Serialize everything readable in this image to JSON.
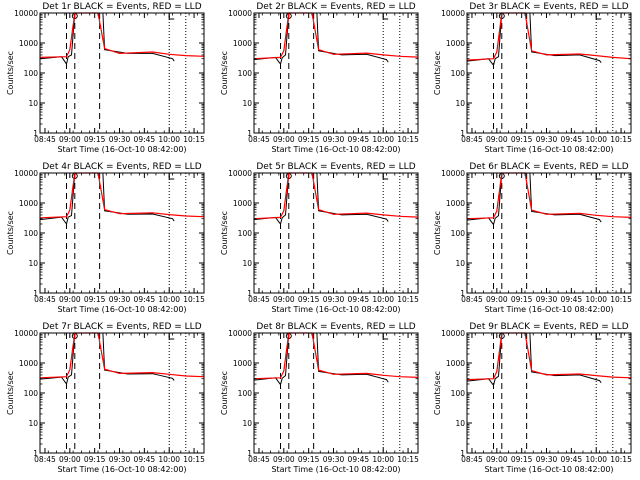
{
  "chart_data": [
    {
      "type": "line",
      "title": "Det 1r BLACK = Events, RED = LLD",
      "xlabel": "Start Time (16-Oct-10 08:42:00)",
      "ylabel": "Counts/sec",
      "y_scale": "log",
      "ylim": [
        1,
        10000
      ],
      "xlim": [
        "08:42",
        "10:21"
      ],
      "x_ticks": [
        "08:45",
        "09:00",
        "09:15",
        "09:30",
        "09:45",
        "10:00",
        "10:15"
      ],
      "y_ticks": [
        "1",
        "10",
        "100",
        "1000",
        "10000"
      ],
      "series": [
        {
          "color": "#000000",
          "legend_word": "BLACK",
          "x": [
            "08:42",
            "08:55",
            "08:58",
            "08:59",
            "09:01",
            "09:03",
            "09:20",
            "09:21",
            "09:35",
            "09:50",
            "10:02",
            "10:03"
          ],
          "y": [
            300,
            350,
            200,
            350,
            400,
            10000,
            10000,
            600,
            450,
            450,
            300,
            250
          ]
        },
        {
          "color": "#ff0000",
          "legend_word": "RED",
          "x": [
            "08:42",
            "08:58",
            "09:00",
            "09:03",
            "09:17",
            "09:21",
            "09:30",
            "09:50",
            "10:00",
            "10:10",
            "10:21"
          ],
          "y": [
            330,
            350,
            600,
            10000,
            10000,
            650,
            450,
            500,
            420,
            380,
            360
          ]
        }
      ]
    },
    {
      "type": "line",
      "title": "Det 2r BLACK = Events, RED = LLD",
      "xlabel": "Start Time (16-Oct-10 08:42:00)",
      "ylabel": "Counts/sec",
      "y_scale": "log",
      "ylim": [
        1,
        10000
      ],
      "xlim": [
        "08:42",
        "10:21"
      ],
      "x_ticks": [
        "08:45",
        "09:00",
        "09:15",
        "09:30",
        "09:45",
        "10:00",
        "10:15"
      ],
      "y_ticks": [
        "1",
        "10",
        "100",
        "1000",
        "10000"
      ],
      "series": [
        {
          "color": "#000000",
          "legend_word": "BLACK",
          "x": [
            "08:42",
            "08:55",
            "08:58",
            "08:59",
            "09:01",
            "09:03",
            "09:20",
            "09:21",
            "09:35",
            "09:50",
            "10:02",
            "10:03"
          ],
          "y": [
            280,
            330,
            200,
            320,
            400,
            10000,
            10000,
            550,
            400,
            420,
            280,
            230
          ]
        },
        {
          "color": "#ff0000",
          "legend_word": "RED",
          "x": [
            "08:42",
            "08:58",
            "09:00",
            "09:03",
            "09:17",
            "09:21",
            "09:30",
            "09:50",
            "10:00",
            "10:10",
            "10:21"
          ],
          "y": [
            300,
            330,
            550,
            10000,
            10000,
            600,
            420,
            460,
            400,
            360,
            340
          ]
        }
      ]
    },
    {
      "type": "line",
      "title": "Det 3r BLACK = Events, RED = LLD",
      "xlabel": "Start Time (16-Oct-10 08:42:00)",
      "ylabel": "Counts/sec",
      "y_scale": "log",
      "ylim": [
        1,
        10000
      ],
      "xlim": [
        "08:42",
        "10:21"
      ],
      "x_ticks": [
        "08:45",
        "09:00",
        "09:15",
        "09:30",
        "09:45",
        "10:00",
        "10:15"
      ],
      "y_ticks": [
        "1",
        "10",
        "100",
        "1000",
        "10000"
      ],
      "series": [
        {
          "color": "#000000",
          "legend_word": "BLACK",
          "x": [
            "08:42",
            "08:55",
            "08:58",
            "08:59",
            "09:01",
            "09:03",
            "09:20",
            "09:21",
            "09:35",
            "09:50",
            "10:02",
            "10:03"
          ],
          "y": [
            250,
            300,
            180,
            300,
            350,
            10000,
            10000,
            500,
            380,
            400,
            260,
            220
          ]
        },
        {
          "color": "#ff0000",
          "legend_word": "RED",
          "x": [
            "08:42",
            "08:58",
            "09:00",
            "09:03",
            "09:17",
            "09:21",
            "09:30",
            "09:50",
            "10:00",
            "10:10",
            "10:21"
          ],
          "y": [
            270,
            300,
            500,
            10000,
            10000,
            550,
            400,
            430,
            380,
            330,
            300
          ]
        }
      ]
    },
    {
      "type": "line",
      "title": "Det 4r BLACK = Events, RED = LLD",
      "xlabel": "Start Time (16-Oct-10 08:42:00)",
      "ylabel": "Counts/sec",
      "y_scale": "log",
      "ylim": [
        1,
        10000
      ],
      "xlim": [
        "08:42",
        "10:21"
      ],
      "x_ticks": [
        "08:45",
        "09:00",
        "09:15",
        "09:30",
        "09:45",
        "10:00",
        "10:15"
      ],
      "y_ticks": [
        "1",
        "10",
        "100",
        "1000",
        "10000"
      ],
      "series": [
        {
          "color": "#000000",
          "legend_word": "BLACK",
          "x": [
            "08:42",
            "08:55",
            "08:58",
            "08:59",
            "09:01",
            "09:03",
            "09:20",
            "09:21",
            "09:35",
            "09:50",
            "10:02",
            "10:03"
          ],
          "y": [
            280,
            340,
            200,
            340,
            380,
            10000,
            10000,
            550,
            420,
            430,
            300,
            250
          ]
        },
        {
          "color": "#ff0000",
          "legend_word": "RED",
          "x": [
            "08:42",
            "08:58",
            "09:00",
            "09:03",
            "09:17",
            "09:21",
            "09:30",
            "09:50",
            "10:00",
            "10:10",
            "10:21"
          ],
          "y": [
            320,
            350,
            580,
            10000,
            10000,
            600,
            440,
            470,
            410,
            370,
            350
          ]
        }
      ]
    },
    {
      "type": "line",
      "title": "Det 5r BLACK = Events, RED = LLD",
      "xlabel": "Start Time (16-Oct-10 08:42:00)",
      "ylabel": "Counts/sec",
      "y_scale": "log",
      "ylim": [
        1,
        10000
      ],
      "xlim": [
        "08:42",
        "10:21"
      ],
      "x_ticks": [
        "08:45",
        "09:00",
        "09:15",
        "09:30",
        "09:45",
        "10:00",
        "10:15"
      ],
      "y_ticks": [
        "1",
        "10",
        "100",
        "1000",
        "10000"
      ],
      "series": [
        {
          "color": "#000000",
          "legend_word": "BLACK",
          "x": [
            "08:42",
            "08:55",
            "08:58",
            "08:59",
            "09:01",
            "09:03",
            "09:20",
            "09:21",
            "09:35",
            "09:50",
            "10:02",
            "10:03"
          ],
          "y": [
            280,
            330,
            200,
            320,
            400,
            10000,
            10000,
            550,
            400,
            420,
            290,
            240
          ]
        },
        {
          "color": "#ff0000",
          "legend_word": "RED",
          "x": [
            "08:42",
            "08:58",
            "09:00",
            "09:03",
            "09:17",
            "09:21",
            "09:30",
            "09:50",
            "10:00",
            "10:10",
            "10:21"
          ],
          "y": [
            300,
            330,
            550,
            10000,
            10000,
            600,
            420,
            460,
            400,
            360,
            340
          ]
        }
      ]
    },
    {
      "type": "line",
      "title": "Det 6r BLACK = Events, RED = LLD",
      "xlabel": "Start Time (16-Oct-10 08:42:00)",
      "ylabel": "Counts/sec",
      "y_scale": "log",
      "ylim": [
        1,
        10000
      ],
      "xlim": [
        "08:42",
        "10:21"
      ],
      "x_ticks": [
        "08:45",
        "09:00",
        "09:15",
        "09:30",
        "09:45",
        "10:00",
        "10:15"
      ],
      "y_ticks": [
        "1",
        "10",
        "100",
        "1000",
        "10000"
      ],
      "series": [
        {
          "color": "#000000",
          "legend_word": "BLACK",
          "x": [
            "08:42",
            "08:55",
            "08:58",
            "08:59",
            "09:01",
            "09:03",
            "09:20",
            "09:21",
            "09:35",
            "09:50",
            "10:02",
            "10:03"
          ],
          "y": [
            270,
            320,
            190,
            310,
            380,
            10000,
            10000,
            520,
            400,
            420,
            280,
            230
          ]
        },
        {
          "color": "#ff0000",
          "legend_word": "RED",
          "x": [
            "08:42",
            "08:58",
            "09:00",
            "09:03",
            "09:17",
            "09:21",
            "09:30",
            "09:50",
            "10:00",
            "10:10",
            "10:21"
          ],
          "y": [
            300,
            320,
            540,
            10000,
            10000,
            580,
            420,
            450,
            390,
            350,
            330
          ]
        }
      ]
    },
    {
      "type": "line",
      "title": "Det 7r BLACK = Events, RED = LLD",
      "xlabel": "Start Time (16-Oct-10 08:42:00)",
      "ylabel": "Counts/sec",
      "y_scale": "log",
      "ylim": [
        1,
        10000
      ],
      "xlim": [
        "08:42",
        "10:21"
      ],
      "x_ticks": [
        "08:45",
        "09:00",
        "09:15",
        "09:30",
        "09:45",
        "10:00",
        "10:15"
      ],
      "y_ticks": [
        "1",
        "10",
        "100",
        "1000",
        "10000"
      ],
      "series": [
        {
          "color": "#000000",
          "legend_word": "BLACK",
          "x": [
            "08:42",
            "08:55",
            "08:58",
            "08:59",
            "09:01",
            "09:03",
            "09:20",
            "09:21",
            "09:35",
            "09:50",
            "10:02",
            "10:03"
          ],
          "y": [
            290,
            340,
            200,
            340,
            400,
            10000,
            10000,
            580,
            430,
            440,
            310,
            260
          ]
        },
        {
          "color": "#ff0000",
          "legend_word": "RED",
          "x": [
            "08:42",
            "08:58",
            "09:00",
            "09:03",
            "09:17",
            "09:21",
            "09:30",
            "09:50",
            "10:00",
            "10:10",
            "10:21"
          ],
          "y": [
            320,
            350,
            600,
            10000,
            10000,
            620,
            450,
            480,
            420,
            370,
            350
          ]
        }
      ]
    },
    {
      "type": "line",
      "title": "Det 8r BLACK = Events, RED = LLD",
      "xlabel": "Start Time (16-Oct-10 08:42:00)",
      "ylabel": "Counts/sec",
      "y_scale": "log",
      "ylim": [
        1,
        10000
      ],
      "xlim": [
        "08:42",
        "10:21"
      ],
      "x_ticks": [
        "08:45",
        "09:00",
        "09:15",
        "09:30",
        "09:45",
        "10:00",
        "10:15"
      ],
      "y_ticks": [
        "1",
        "10",
        "100",
        "1000",
        "10000"
      ],
      "series": [
        {
          "color": "#000000",
          "legend_word": "BLACK",
          "x": [
            "08:42",
            "08:55",
            "08:58",
            "08:59",
            "09:01",
            "09:03",
            "09:20",
            "09:21",
            "09:35",
            "09:50",
            "10:02",
            "10:03"
          ],
          "y": [
            270,
            320,
            190,
            310,
            380,
            10000,
            10000,
            520,
            400,
            420,
            280,
            230
          ]
        },
        {
          "color": "#ff0000",
          "legend_word": "RED",
          "x": [
            "08:42",
            "08:58",
            "09:00",
            "09:03",
            "09:17",
            "09:21",
            "09:30",
            "09:50",
            "10:00",
            "10:10",
            "10:21"
          ],
          "y": [
            300,
            320,
            540,
            10000,
            10000,
            580,
            420,
            450,
            390,
            350,
            330
          ]
        }
      ]
    },
    {
      "type": "line",
      "title": "Det 9r BLACK = Events, RED = LLD",
      "xlabel": "Start Time (16-Oct-10 08:42:00)",
      "ylabel": "Counts/sec",
      "y_scale": "log",
      "ylim": [
        1,
        10000
      ],
      "xlim": [
        "08:42",
        "10:21"
      ],
      "x_ticks": [
        "08:45",
        "09:00",
        "09:15",
        "09:30",
        "09:45",
        "10:00",
        "10:15"
      ],
      "y_ticks": [
        "1",
        "10",
        "100",
        "1000",
        "10000"
      ],
      "series": [
        {
          "color": "#000000",
          "legend_word": "BLACK",
          "x": [
            "08:42",
            "08:55",
            "08:58",
            "08:59",
            "09:01",
            "09:03",
            "09:20",
            "09:21",
            "09:35",
            "09:50",
            "10:02",
            "10:03"
          ],
          "y": [
            250,
            300,
            180,
            300,
            360,
            10000,
            10000,
            500,
            380,
            400,
            260,
            220
          ]
        },
        {
          "color": "#ff0000",
          "legend_word": "RED",
          "x": [
            "08:42",
            "08:58",
            "09:00",
            "09:03",
            "09:17",
            "09:21",
            "09:30",
            "09:50",
            "10:00",
            "10:10",
            "10:21"
          ],
          "y": [
            280,
            300,
            520,
            10000,
            10000,
            560,
            400,
            430,
            380,
            340,
            320
          ]
        }
      ]
    }
  ]
}
